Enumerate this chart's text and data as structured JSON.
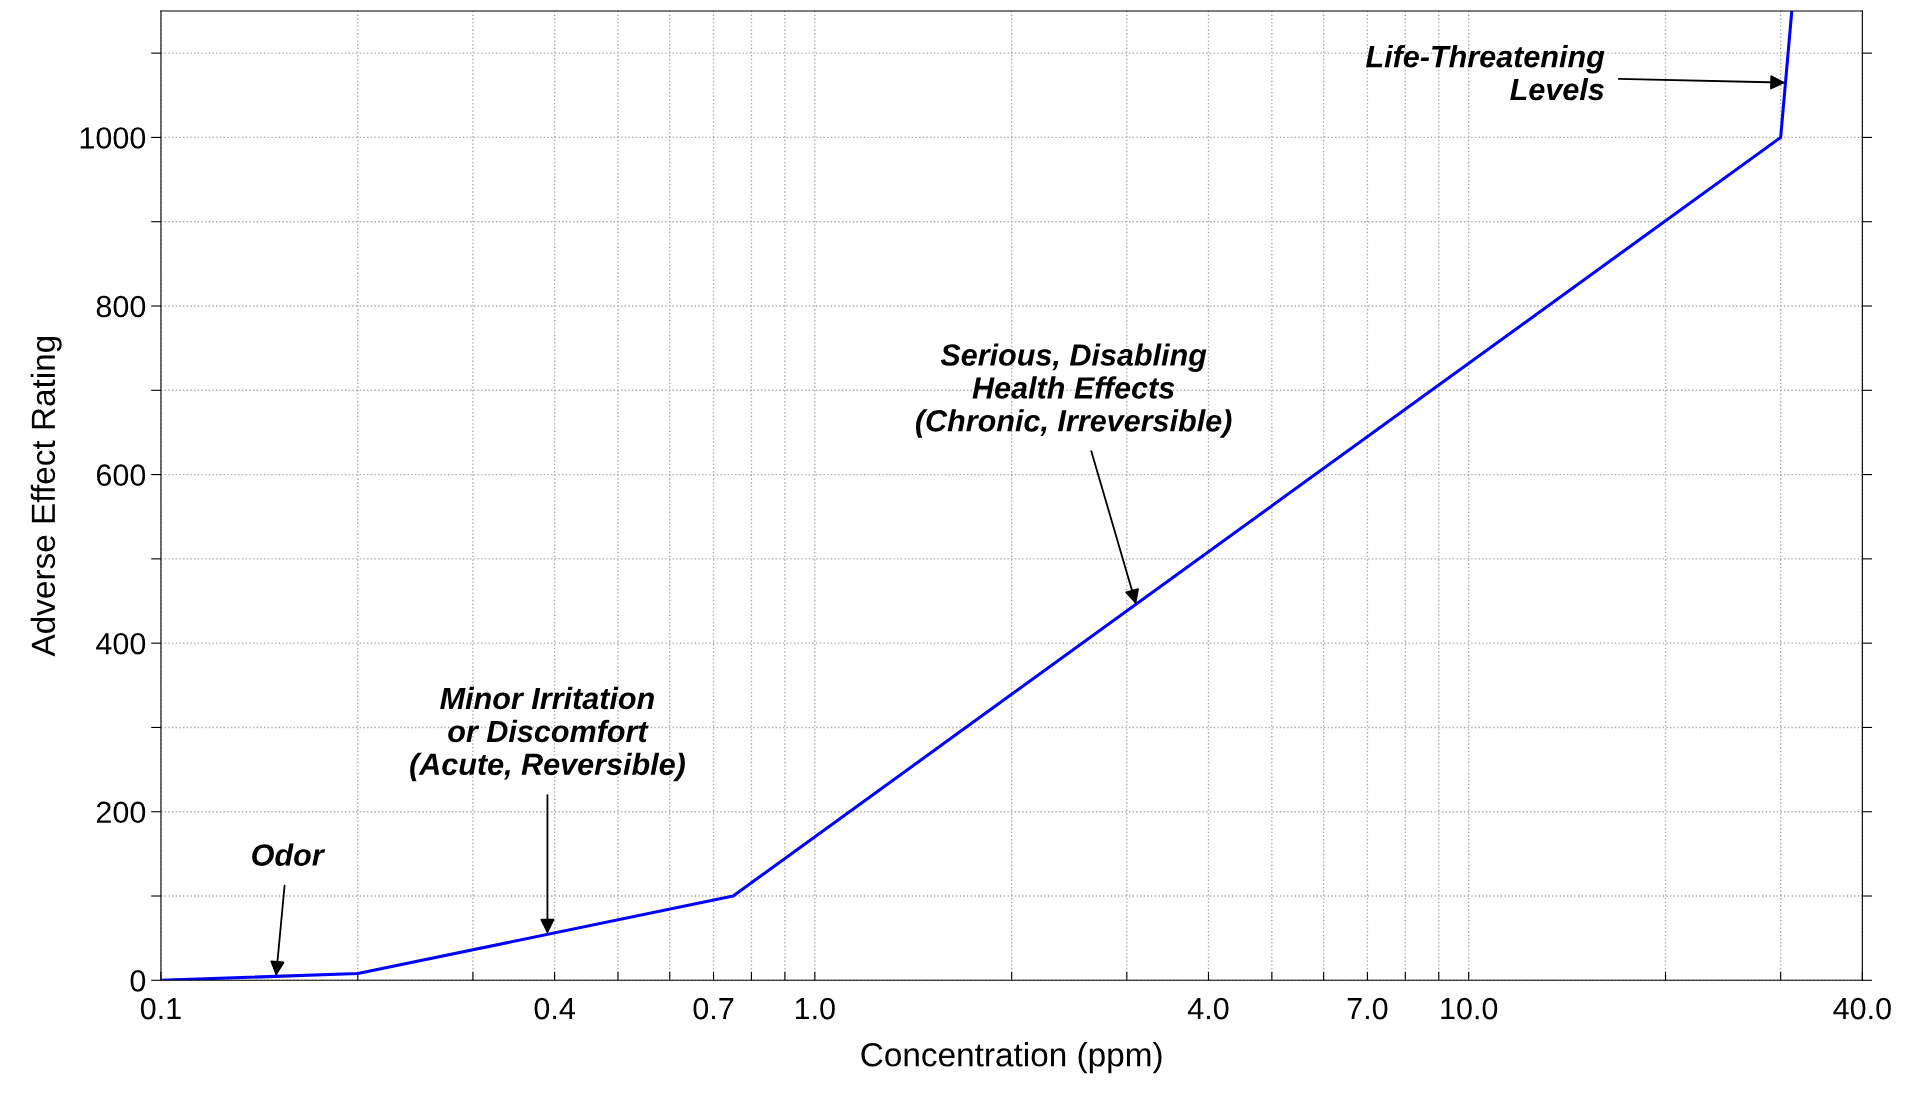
{
  "chart_data": {
    "type": "line",
    "xlabel": "Concentration (ppm)",
    "ylabel": "Adverse Effect Rating",
    "log": "x",
    "grid": true,
    "marker": "none",
    "line_style": "solid",
    "series": [
      {
        "color": "#0000ff",
        "x": [
          0.1,
          0.2,
          0.75,
          30,
          31.2
        ],
        "values": [
          0,
          8,
          100,
          1000,
          1150
        ]
      }
    ],
    "xlim": [
      0.1,
      40
    ],
    "ylim": [
      0,
      1150
    ],
    "xticks": [
      0.1,
      {
        "value": 0.2,
        "label": null
      },
      {
        "value": 0.3,
        "label": null
      },
      0.4,
      {
        "value": 0.5,
        "label": null
      },
      {
        "value": 0.6,
        "label": null
      },
      0.7,
      {
        "value": 0.8,
        "label": null
      },
      {
        "value": 0.9,
        "label": null
      },
      {
        "value": 1,
        "label": "1.0"
      },
      {
        "value": 2,
        "label": null
      },
      {
        "value": 3,
        "label": null
      },
      {
        "value": 4,
        "label": "4.0"
      },
      {
        "value": 5,
        "label": null
      },
      {
        "value": 6,
        "label": null
      },
      {
        "value": 7,
        "label": "7.0"
      },
      {
        "value": 8,
        "label": null
      },
      {
        "value": 9,
        "label": null
      },
      {
        "value": 10,
        "label": "10.0"
      },
      {
        "value": 20,
        "label": null
      },
      {
        "value": 30,
        "label": null
      },
      {
        "value": 40,
        "label": "40.0"
      }
    ],
    "yticks": [
      0,
      {
        "value": 100,
        "label": null
      },
      200,
      {
        "value": 300,
        "label": null
      },
      400,
      {
        "value": 500,
        "label": null
      },
      600,
      {
        "value": 700,
        "label": null
      },
      800,
      {
        "value": 900,
        "label": null
      },
      1000,
      {
        "value": 1100,
        "label": null
      }
    ],
    "annotations": [
      {
        "text": "Odor",
        "x": 0.15,
        "y": 5
      },
      {
        "text": "Minor Irritation\nor Discomfort\n(Acute, Reversible)",
        "x": 0.39,
        "y": 55
      },
      {
        "text": "Serious, Disabling\nHealth Effects\n(Chronic, Irreversible)",
        "x": 3.1,
        "y": 446
      },
      {
        "text": "Life-Threatening\nLevels",
        "x": 30.5,
        "y": 1065
      }
    ]
  }
}
